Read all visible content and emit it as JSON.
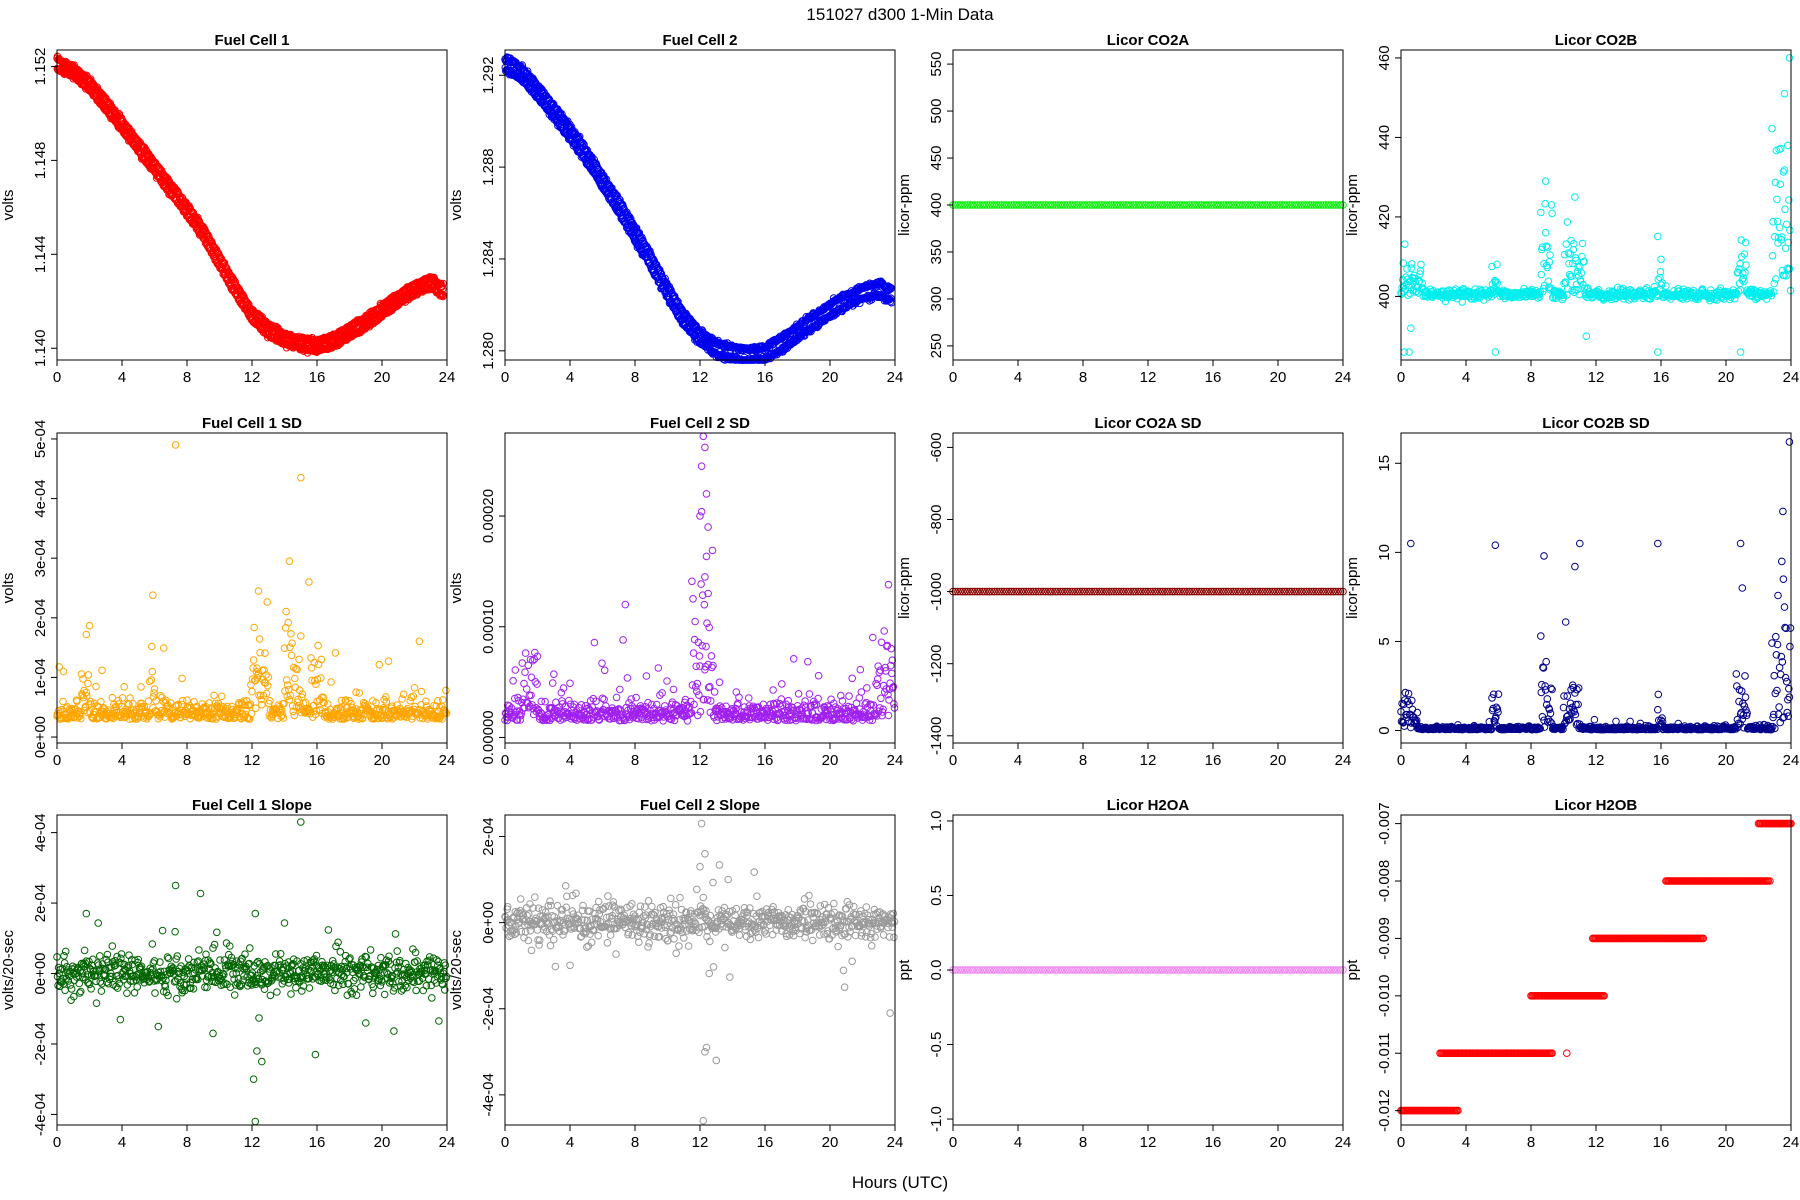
{
  "figure": {
    "title": "151027   d300   1-Min Data",
    "xlabel": "Hours (UTC)"
  },
  "chart_data": [
    {
      "type": "scatter",
      "title": "Fuel Cell 1",
      "ylabel": "volts",
      "color": "#ff0000",
      "xlim": [
        0,
        24
      ],
      "xticks": [
        0,
        4,
        8,
        12,
        16,
        20,
        24
      ],
      "ylim": [
        1.1395,
        1.1527
      ],
      "yticks": [
        1.14,
        1.144,
        1.148,
        1.152
      ],
      "ytick_labels": [
        "1.140",
        "1.144",
        "1.148",
        "1.152"
      ],
      "series": [
        {
          "kind": "band",
          "x": [
            0,
            1,
            2,
            3,
            4,
            5,
            6,
            7,
            8,
            9,
            10,
            11,
            12,
            13,
            14,
            15,
            16,
            17,
            18,
            19,
            20,
            21,
            22,
            23,
            23.8
          ],
          "y": [
            1.1521,
            1.1518,
            1.1512,
            1.1504,
            1.1495,
            1.1486,
            1.1477,
            1.1468,
            1.1459,
            1.1449,
            1.1437,
            1.1425,
            1.1414,
            1.1408,
            1.1404,
            1.1402,
            1.1401,
            1.1403,
            1.1407,
            1.1411,
            1.1416,
            1.1421,
            1.1425,
            1.1428,
            1.1424
          ],
          "spread": 0.0004
        }
      ]
    },
    {
      "type": "scatter",
      "title": "Fuel Cell 2",
      "ylabel": "volts",
      "color": "#0000ee",
      "xlim": [
        0,
        24
      ],
      "xticks": [
        0,
        4,
        8,
        12,
        16,
        20,
        24
      ],
      "ylim": [
        1.2796,
        1.2931
      ],
      "yticks": [
        1.28,
        1.284,
        1.288,
        1.292
      ],
      "ytick_labels": [
        "1.280",
        "1.284",
        "1.288",
        "1.292"
      ],
      "series": [
        {
          "kind": "band",
          "x": [
            0,
            1,
            2,
            3,
            4,
            5,
            6,
            7,
            8,
            9,
            10,
            11,
            12,
            13,
            14,
            15,
            16,
            17,
            18,
            19,
            20,
            21,
            22,
            23,
            23.8
          ],
          "y": [
            1.2925,
            1.2921,
            1.2913,
            1.2904,
            1.2895,
            1.2885,
            1.2874,
            1.2863,
            1.2851,
            1.2839,
            1.2826,
            1.2814,
            1.2806,
            1.2801,
            1.2799,
            1.2798,
            1.2799,
            1.2803,
            1.2808,
            1.2813,
            1.2818,
            1.2822,
            1.2825,
            1.2827,
            1.2824
          ],
          "spread": 0.0005
        }
      ]
    },
    {
      "type": "scatter",
      "title": "Licor CO2A",
      "ylabel": "licor-ppm",
      "color": "#00ee00",
      "xlim": [
        0,
        24
      ],
      "xticks": [
        0,
        4,
        8,
        12,
        16,
        20,
        24
      ],
      "ylim": [
        235,
        565
      ],
      "yticks": [
        250,
        300,
        350,
        400,
        450,
        500,
        550
      ],
      "ytick_labels": [
        "250",
        "300",
        "350",
        "400",
        "450",
        "500",
        "550"
      ],
      "series": [
        {
          "kind": "flat",
          "x0": 0,
          "x1": 24,
          "y": 400
        }
      ]
    },
    {
      "type": "scatter",
      "title": "Licor CO2B",
      "ylabel": "licor-ppm",
      "color": "#00eeee",
      "xlim": [
        0,
        24
      ],
      "xticks": [
        0,
        4,
        8,
        12,
        16,
        20,
        24
      ],
      "ylim": [
        384,
        462
      ],
      "yticks": [
        400,
        420,
        440,
        460
      ],
      "ytick_labels": [
        "400",
        "420",
        "440",
        "460"
      ],
      "series": [
        {
          "kind": "noise",
          "base": 400.5,
          "scale": 0.6,
          "bursts": [
            [
              0,
              1.3,
              6
            ],
            [
              5.6,
              6,
              5
            ],
            [
              8.6,
              9.3,
              18
            ],
            [
              10,
              11.3,
              12
            ],
            [
              15.8,
              16.1,
              8
            ],
            [
              20.7,
              21.3,
              8
            ],
            [
              22.8,
              24,
              30
            ]
          ],
          "outliers": [
            [
              0.2,
              386
            ],
            [
              0.5,
              386
            ],
            [
              5.8,
              386
            ],
            [
              15.8,
              386
            ],
            [
              20.9,
              386
            ],
            [
              11.4,
              390
            ],
            [
              0.6,
              392
            ],
            [
              23.9,
              460
            ],
            [
              23.6,
              451
            ],
            [
              23.8,
              438
            ],
            [
              8.9,
              429
            ],
            [
              10.7,
              425
            ]
          ]
        }
      ]
    },
    {
      "type": "scatter",
      "title": "Fuel Cell 1 SD",
      "ylabel": "volts",
      "color": "#ffa500",
      "xlim": [
        0,
        24
      ],
      "xticks": [
        0,
        4,
        8,
        12,
        16,
        20,
        24
      ],
      "ylim": [
        -1e-05,
        0.00051
      ],
      "yticks": [
        0,
        0.0001,
        0.0002,
        0.0003,
        0.0004,
        0.0005
      ],
      "ytick_labels": [
        "0e+00",
        "1e-04",
        "2e-04",
        "3e-04",
        "4e-04",
        "5e-04"
      ],
      "series": [
        {
          "kind": "sd",
          "base": 3e-05,
          "scale": 1.5e-05,
          "bursts": [
            [
              1.5,
              2,
              0.00012
            ],
            [
              5.8,
              6,
              0.0001
            ],
            [
              12,
              13,
              0.00018
            ],
            [
              14,
              15,
              0.0002
            ],
            [
              15.6,
              16.4,
              0.0001
            ]
          ],
          "outliers": [
            [
              7.3,
              0.00049
            ],
            [
              15,
              0.000435
            ],
            [
              14.3,
              0.000295
            ],
            [
              12.4,
              0.000245
            ],
            [
              5.9,
              0.000238
            ],
            [
              15.5,
              0.00026
            ],
            [
              1.8,
              0.000172
            ]
          ]
        }
      ]
    },
    {
      "type": "scatter",
      "title": "Fuel Cell 2 SD",
      "ylabel": "volts",
      "color": "#a020f0",
      "xlim": [
        0,
        24
      ],
      "xticks": [
        0,
        4,
        8,
        12,
        16,
        20,
        24
      ],
      "ylim": [
        -5e-06,
        0.000275
      ],
      "yticks": [
        0,
        0.0001,
        0.0002
      ],
      "ytick_labels": [
        "0.00000",
        "0.00010",
        "0.00020"
      ],
      "series": [
        {
          "kind": "sd",
          "base": 1.5e-05,
          "scale": 9e-06,
          "bursts": [
            [
              1,
              2,
              6e-05
            ],
            [
              11.5,
              12.8,
              0.00012
            ],
            [
              22.8,
              24,
              6e-05
            ]
          ],
          "outliers": [
            [
              12.2,
              0.000272
            ],
            [
              12.3,
              0.000262
            ],
            [
              12.1,
              0.000245
            ],
            [
              12.4,
              0.00022
            ],
            [
              12.0,
              0.0002
            ],
            [
              12.5,
              0.00019
            ],
            [
              12.3,
              0.000145
            ],
            [
              12.5,
              0.00013
            ],
            [
              23.6,
              0.000138
            ],
            [
              7.4,
              0.00012
            ]
          ]
        }
      ]
    },
    {
      "type": "scatter",
      "title": "Licor CO2A SD",
      "ylabel": "licor-ppm",
      "color": "#8b0000",
      "xlim": [
        0,
        24
      ],
      "xticks": [
        0,
        4,
        8,
        12,
        16,
        20,
        24
      ],
      "ylim": [
        -1420,
        -560
      ],
      "yticks": [
        -1400,
        -1200,
        -1000,
        -800,
        -600
      ],
      "ytick_labels": [
        "-1400",
        "-1200",
        "-1000",
        "-800",
        "-600"
      ],
      "series": [
        {
          "kind": "flat",
          "x0": 0,
          "x1": 24,
          "y": -1000
        }
      ]
    },
    {
      "type": "scatter",
      "title": "Licor CO2B SD",
      "ylabel": "licor-ppm",
      "color": "#00008b",
      "xlim": [
        0,
        24
      ],
      "xticks": [
        0,
        4,
        8,
        12,
        16,
        20,
        24
      ],
      "ylim": [
        -0.7,
        16.7
      ],
      "yticks": [
        0,
        5,
        10,
        15
      ],
      "ytick_labels": [
        "0",
        "5",
        "10",
        "15"
      ],
      "series": [
        {
          "kind": "sd",
          "base": 0.05,
          "scale": 0.08,
          "bursts": [
            [
              0,
              1,
              2
            ],
            [
              5.6,
              6,
              2
            ],
            [
              8.6,
              9.3,
              4
            ],
            [
              10,
              11,
              4
            ],
            [
              15.8,
              16.1,
              1.5
            ],
            [
              20.6,
              21.3,
              3
            ],
            [
              22.8,
              24,
              7
            ]
          ],
          "outliers": [
            [
              23.9,
              16.2
            ],
            [
              23.5,
              12.3
            ],
            [
              0.6,
              10.5
            ],
            [
              5.8,
              10.4
            ],
            [
              11,
              10.5
            ],
            [
              15.8,
              10.5
            ],
            [
              20.9,
              10.5
            ],
            [
              8.8,
              9.8
            ],
            [
              10.7,
              9.2
            ],
            [
              21,
              8
            ]
          ]
        }
      ]
    },
    {
      "type": "scatter",
      "title": "Fuel Cell 1 Slope",
      "ylabel": "volts/20-sec",
      "color": "#006400",
      "xlim": [
        0,
        24
      ],
      "xticks": [
        0,
        4,
        8,
        12,
        16,
        20,
        24
      ],
      "ylim": [
        -0.00043,
        0.00045
      ],
      "yticks": [
        -0.0004,
        -0.0002,
        0,
        0.0002,
        0.0004
      ],
      "ytick_labels": [
        "-4e-04",
        "-2e-04",
        "0e+00",
        "2e-04",
        "4e-04"
      ],
      "series": [
        {
          "kind": "slope",
          "scale": 2.5e-05,
          "wide": 9e-05,
          "outliers": [
            [
              15,
              0.00043
            ],
            [
              7.3,
              0.00025
            ],
            [
              12.2,
              -0.00042
            ],
            [
              12.1,
              -0.0003
            ],
            [
              12.6,
              -0.00025
            ],
            [
              12.3,
              -0.00022
            ],
            [
              9.6,
              -0.00017
            ],
            [
              1.8,
              0.00017
            ],
            [
              12.2,
              0.00017
            ]
          ]
        }
      ]
    },
    {
      "type": "scatter",
      "title": "Fuel Cell 2 Slope",
      "ylabel": "volts/20-sec",
      "color": "#9a9a9a",
      "xlim": [
        0,
        24
      ],
      "xticks": [
        0,
        4,
        8,
        12,
        16,
        20,
        24
      ],
      "ylim": [
        -0.00047,
        0.00025
      ],
      "yticks": [
        -0.0004,
        -0.0002,
        0,
        0.0002
      ],
      "ytick_labels": [
        "-4e-04",
        "-2e-04",
        "0e+00",
        "2e-04"
      ],
      "series": [
        {
          "kind": "slope",
          "scale": 2e-05,
          "wide": 6e-05,
          "outliers": [
            [
              12.1,
              0.00023
            ],
            [
              12.3,
              0.00016
            ],
            [
              12,
              0.00013
            ],
            [
              12.2,
              -0.00046
            ],
            [
              12.4,
              -0.00029
            ],
            [
              12.3,
              -0.0003
            ],
            [
              13,
              -0.00032
            ],
            [
              23.7,
              -0.00021
            ],
            [
              20.9,
              -0.00015
            ]
          ]
        }
      ]
    },
    {
      "type": "scatter",
      "title": "Licor H2OA",
      "ylabel": "ppt",
      "color": "#ee82ee",
      "xlim": [
        0,
        24
      ],
      "xticks": [
        0,
        4,
        8,
        12,
        16,
        20,
        24
      ],
      "ylim": [
        -1.04,
        1.04
      ],
      "yticks": [
        -1,
        -0.5,
        0,
        0.5,
        1
      ],
      "ytick_labels": [
        "-1.0",
        "-0.5",
        "0.0",
        "0.5",
        "1.0"
      ],
      "series": [
        {
          "kind": "flat",
          "x0": 0,
          "x1": 24,
          "y": 0
        }
      ]
    },
    {
      "type": "scatter",
      "title": "Licor H2OB",
      "ylabel": "ppt",
      "color": "#ff0000",
      "xlim": [
        0,
        24
      ],
      "xticks": [
        0,
        4,
        8,
        12,
        16,
        20,
        24
      ],
      "ylim": [
        -0.01225,
        -0.00685
      ],
      "yticks": [
        -0.012,
        -0.011,
        -0.01,
        -0.009,
        -0.008,
        -0.007
      ],
      "ytick_labels": [
        "-0.012",
        "-0.011",
        "-0.010",
        "-0.009",
        "-0.008",
        "-0.007"
      ],
      "series": [
        {
          "kind": "steps",
          "steps": [
            [
              0,
              3.5,
              -0.012
            ],
            [
              2.4,
              9.3,
              -0.011
            ],
            [
              8,
              12.5,
              -0.01
            ],
            [
              11.8,
              18.6,
              -0.009
            ],
            [
              16.3,
              22.6,
              -0.008
            ],
            [
              22,
              24,
              -0.007
            ]
          ],
          "outliers": [
            [
              10.2,
              -0.011
            ],
            [
              22.7,
              -0.008
            ],
            [
              16.5,
              -0.008
            ]
          ]
        }
      ]
    }
  ]
}
